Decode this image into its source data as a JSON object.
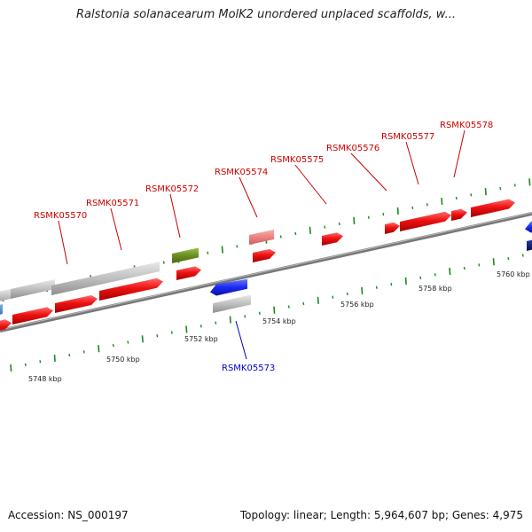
{
  "title": "Ralstonia solanacearum MolK2 unordered unplaced scaffolds, w...",
  "footer": {
    "accession": "Accession: NS_000197",
    "summary": "Topology: linear; Length: 5,964,607 bp; Genes: 4,975"
  },
  "colors": {
    "forward_gene": "#ee1111",
    "forward_gene_light": "#f08a8a",
    "reverse_gene": "#1a2af0",
    "neutral_gene": "#bfbfbf",
    "green_gene": "#6b8e23",
    "blue_partial": "#3a7ab8",
    "navy_partial": "#0a1a80",
    "forward_label": "#cc0000",
    "reverse_label": "#0000cc",
    "tick_color": "#1a8a1a",
    "backbone": "#888888"
  },
  "scale_labels": [
    "5748 kbp",
    "5750 kbp",
    "5752 kbp",
    "5754 kbp",
    "5756 kbp",
    "5758 kbp",
    "5760 kbp"
  ],
  "forward_labels": [
    "RSMK05570",
    "RSMK05571",
    "RSMK05572",
    "RSMK05574",
    "RSMK05575",
    "RSMK05576",
    "RSMK05577",
    "RSMK05578"
  ],
  "reverse_labels": [
    "RSMK05573"
  ]
}
